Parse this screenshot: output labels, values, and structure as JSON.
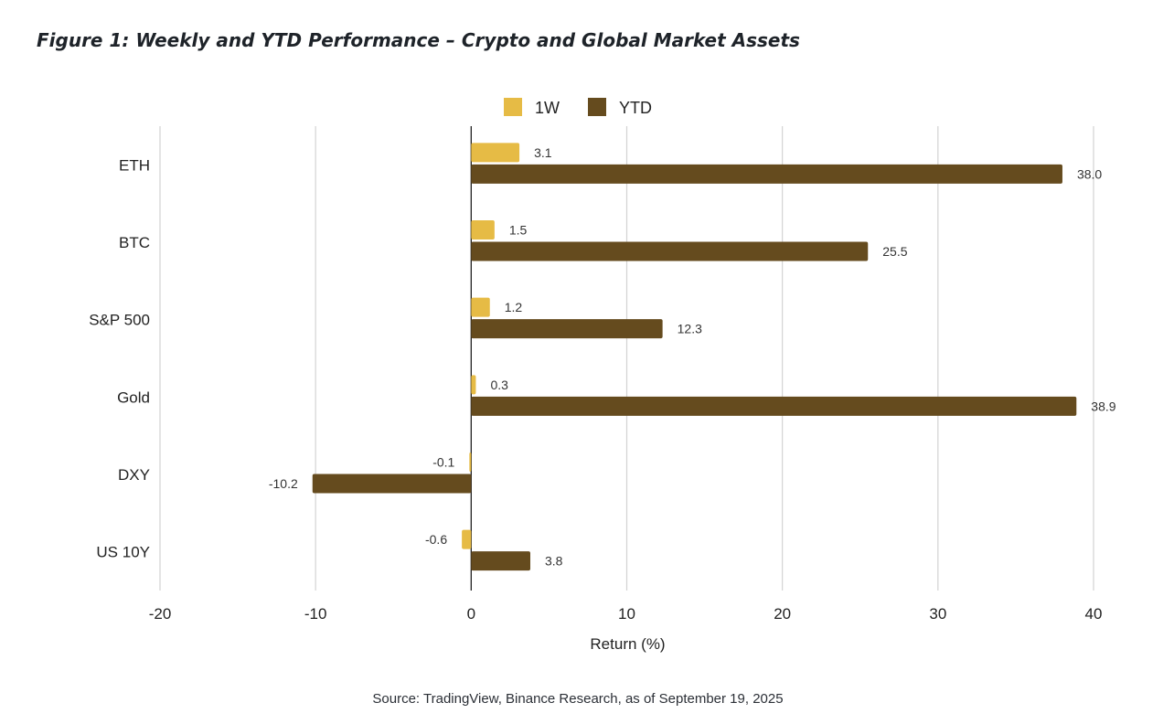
{
  "title": "Figure 1: Weekly and YTD Performance – Crypto and Global Market Assets",
  "source": "Source: TradingView, Binance Research, as of September 19, 2025",
  "colors": {
    "1W": "#e6bb45",
    "YTD": "#654b1e",
    "grid": "#d3d3d3",
    "axis": "#222222"
  },
  "chart_data": {
    "type": "bar",
    "orientation": "horizontal",
    "categories": [
      "ETH",
      "BTC",
      "S&P 500",
      "Gold",
      "DXY",
      "US 10Y"
    ],
    "series": [
      {
        "name": "1W",
        "values": [
          3.1,
          1.5,
          1.2,
          0.3,
          -0.1,
          -0.6
        ],
        "labels": [
          "3.1",
          "1.5",
          "1.2",
          "0.3",
          "-0.1",
          "-0.6"
        ]
      },
      {
        "name": "YTD",
        "values": [
          38.0,
          25.5,
          12.3,
          38.9,
          -10.2,
          3.8
        ],
        "labels": [
          "38.0",
          "25.5",
          "12.3",
          "38.9",
          "-10.2",
          "3.8"
        ]
      }
    ],
    "xlabel": "Return (%)",
    "xlim": [
      -20,
      40
    ],
    "xticks": [
      "-20",
      "-10",
      "0",
      "10",
      "20",
      "30",
      "40"
    ],
    "grid": "vertical",
    "legend": "top-center"
  }
}
